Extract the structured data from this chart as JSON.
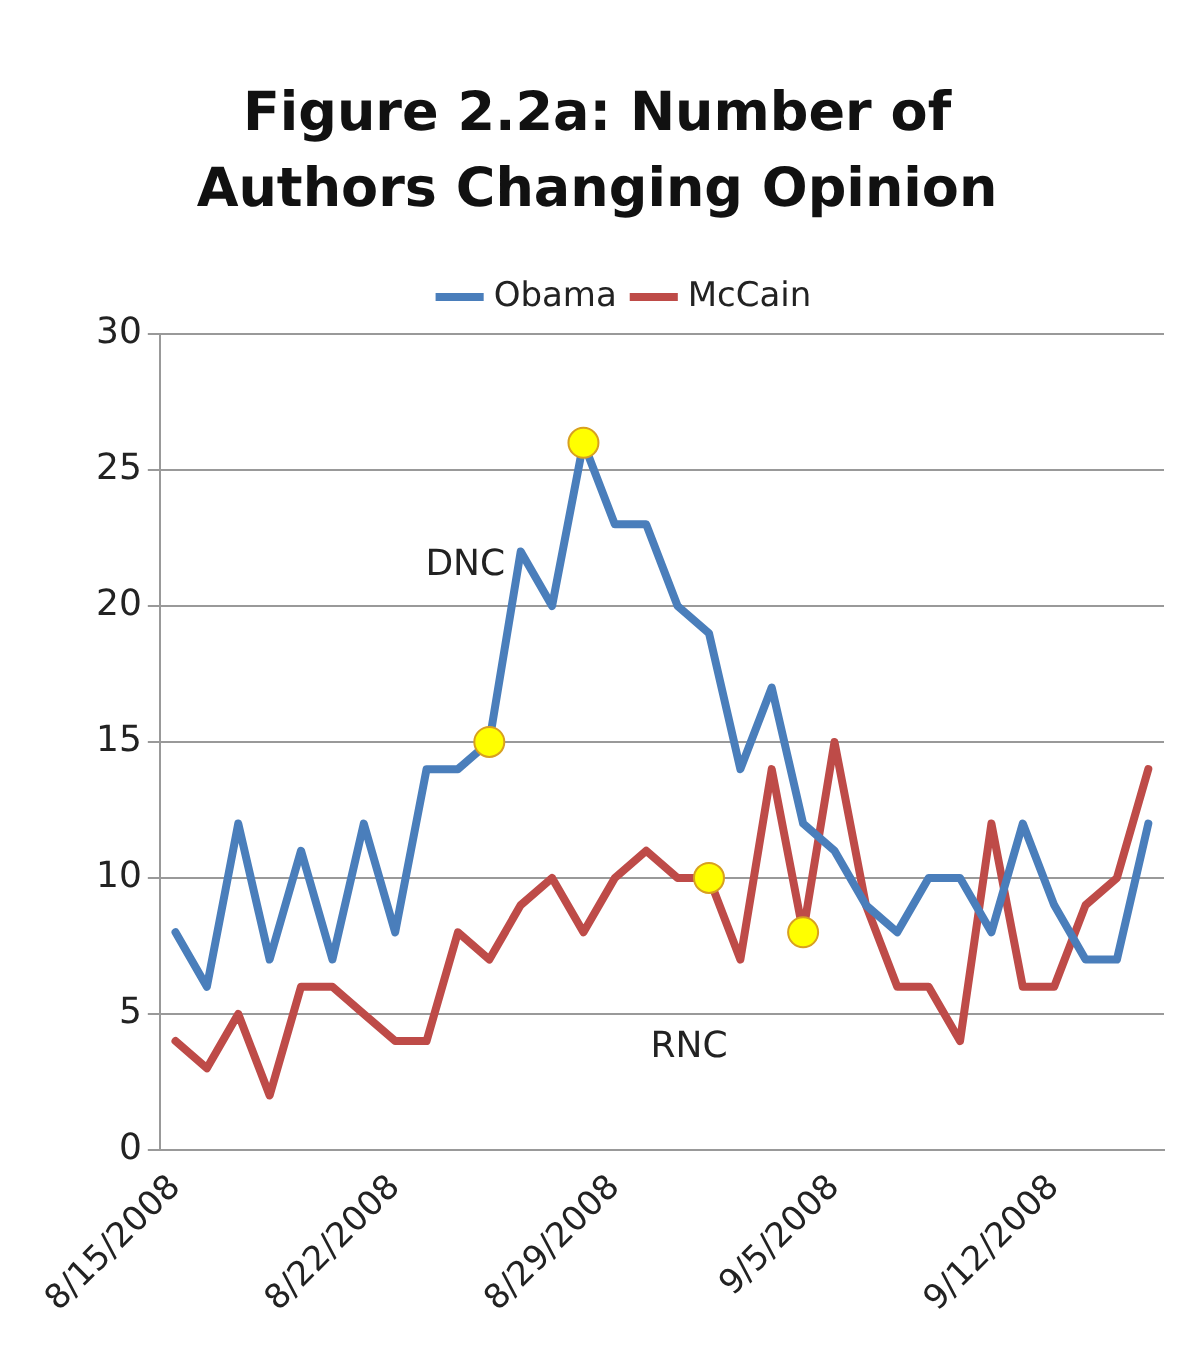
{
  "chart_data": {
    "type": "line",
    "title": "Figure 2.2a: Number of Authors Changing Opinion",
    "categories": [
      "8/15/2008",
      null,
      null,
      null,
      null,
      null,
      null,
      "8/22/2008",
      null,
      null,
      null,
      null,
      null,
      null,
      "8/29/2008",
      null,
      null,
      null,
      null,
      null,
      null,
      "9/5/2008",
      null,
      null,
      null,
      null,
      null,
      null,
      "9/12/2008",
      null,
      null,
      null
    ],
    "series": [
      {
        "name": "Obama",
        "color": "#4a7ebb",
        "values": [
          8,
          6,
          12,
          7,
          11,
          7,
          12,
          8,
          14,
          14,
          15,
          22,
          20,
          26,
          23,
          23,
          20,
          19,
          14,
          17,
          12,
          11,
          9,
          8,
          10,
          10,
          8,
          12,
          9,
          7,
          7,
          12
        ]
      },
      {
        "name": "McCain",
        "color": "#be4b48",
        "values": [
          4,
          3,
          5,
          2,
          6,
          6,
          5,
          4,
          4,
          8,
          7,
          9,
          10,
          8,
          10,
          11,
          10,
          10,
          7,
          14,
          8,
          15,
          9,
          6,
          6,
          4,
          12,
          6,
          6,
          9,
          10,
          14
        ]
      },
      {
        "type": "scatter",
        "marker": "circle",
        "color": "#ffff00",
        "values": [
          null,
          null,
          null,
          null,
          null,
          null,
          null,
          null,
          null,
          null,
          15,
          null,
          null,
          26,
          null,
          null,
          null,
          null,
          null,
          null,
          null,
          null,
          null,
          null,
          null,
          null,
          null,
          null,
          null,
          null,
          null,
          null
        ]
      },
      {
        "type": "scatter",
        "marker": "circle",
        "color": "#ffff00",
        "values": [
          null,
          null,
          null,
          null,
          null,
          null,
          null,
          null,
          null,
          null,
          null,
          null,
          null,
          null,
          null,
          null,
          null,
          10,
          null,
          null,
          8,
          null,
          null,
          null,
          null,
          null,
          null,
          null,
          null,
          null,
          null,
          null
        ]
      }
    ],
    "annotations": [
      "DNC",
      "RNC"
    ],
    "ylim": [
      0,
      30
    ],
    "yticks": [
      0,
      5,
      10,
      15,
      20,
      25,
      30
    ],
    "grid": "y",
    "legend": "top",
    "marker": "none",
    "line_style": "solid"
  }
}
